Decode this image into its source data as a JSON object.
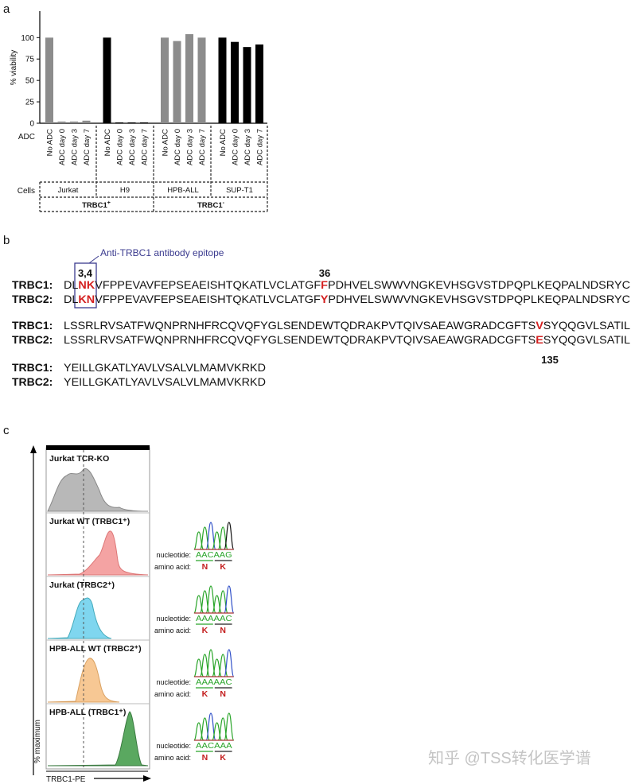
{
  "panel_labels": [
    "a",
    "b",
    "c"
  ],
  "chart_data": {
    "type": "bar",
    "y_label": "% viability",
    "ylim": [
      0,
      130
    ],
    "yticks": [
      0,
      25,
      50,
      75,
      100
    ],
    "row_labels": [
      "ADC",
      "Cells"
    ],
    "groups": [
      {
        "name": "Jurkat",
        "color": "#8c8c8c",
        "categories": [
          "No ADC",
          "ADC day 0",
          "ADC day 3",
          "ADC day 7"
        ],
        "values": [
          100,
          2,
          2,
          3
        ]
      },
      {
        "name": "H9",
        "color": "#000000",
        "categories": [
          "No ADC",
          "ADC day 0",
          "ADC day 3",
          "ADC day 7"
        ],
        "values": [
          100,
          1,
          1,
          1
        ]
      },
      {
        "name": "HPB-ALL",
        "color": "#8c8c8c",
        "categories": [
          "No ADC",
          "ADC day 0",
          "ADC day 3",
          "ADC day 7"
        ],
        "values": [
          100,
          96,
          104,
          100
        ]
      },
      {
        "name": "SUP-T1",
        "color": "#000000",
        "categories": [
          "No ADC",
          "ADC day 0",
          "ADC day 3",
          "ADC day 7"
        ],
        "values": [
          100,
          95,
          89,
          92
        ]
      }
    ],
    "supergroups": [
      {
        "name": "TRBC1",
        "sup": "+"
      },
      {
        "name": "TRBC1",
        "sup": "-"
      }
    ]
  },
  "sequence": {
    "annotation": "Anti-TRBC1 antibody epitope",
    "positions": [
      "3,4",
      "36",
      "135"
    ],
    "blocks": [
      [
        {
          "name": "TRBC1:",
          "parts": [
            "DL",
            "NK",
            "VFPPEVAVFEPSEAEISHTQKATLVCLATGF",
            "F",
            "PDHVELSWWVNGKEVHSGVSTDPQPLKEQPALNDSRYC"
          ]
        },
        {
          "name": "TRBC2:",
          "parts": [
            "DL",
            "KN",
            "VFPPEVAVFEPSEAEISHTQKATLVCLATGF",
            "Y",
            "PDHVELSWWVNGKEVHSGVSTDPQPLKEQPALNDSRYC"
          ]
        }
      ],
      [
        {
          "name": "TRBC1:",
          "parts": [
            "LSSRLRVSATFWQNPRNHFRCQVQFYGLSENDEWTQDRAKPVTQIVSAEAWGRADCGFTS",
            "V",
            "SYQQGVLSATIL"
          ]
        },
        {
          "name": "TRBC2:",
          "parts": [
            "LSSRLRVSATFWQNPRNHFRCQVQFYGLSENDEWTQDRAKPVTQIVSAEAWGRADCGFTS",
            "E",
            "SYQQGVLSATIL"
          ]
        }
      ],
      [
        {
          "name": "TRBC1:",
          "parts": [
            "YEILLGKATLYAVLVSALVLMAMVKRKD"
          ]
        },
        {
          "name": "TRBC2:",
          "parts": [
            "YEILLGKATLYAVLVSALVLMAMVKRKD"
          ]
        }
      ]
    ]
  },
  "flow": {
    "y_label": "% maximum",
    "x_label": "TRBC1-PE",
    "nucleotide_label": "nucleotide:",
    "amino_label": "amino acid:",
    "panels": [
      {
        "label": "Jurkat TCR-KO"
      },
      {
        "label": "Jurkat WT (TRBC1⁺)",
        "nucleotide": "AACAAG",
        "amino": [
          "N",
          "K"
        ]
      },
      {
        "label": "Jurkat (TRBC2⁺)",
        "nucleotide": "AAAAAC",
        "amino": [
          "K",
          "N"
        ]
      },
      {
        "label": "HPB-ALL WT (TRBC2⁺)",
        "nucleotide": "AAAAAC",
        "amino": [
          "K",
          "N"
        ]
      },
      {
        "label": "HPB-ALL (TRBC1⁺)",
        "nucleotide": "AACAAA",
        "amino": [
          "N",
          "K"
        ]
      }
    ]
  },
  "watermark": "知乎 @TSS转化医学谱"
}
